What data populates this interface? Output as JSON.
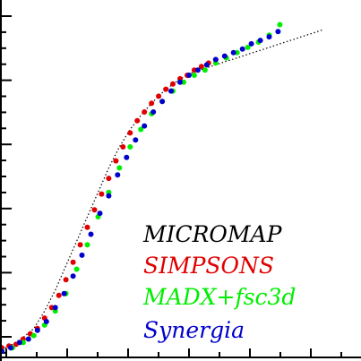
{
  "chart_data": {
    "type": "scatter",
    "title": "",
    "xlabel": "",
    "ylabel": "",
    "xlim": [
      0,
      100
    ],
    "ylim": [
      0,
      100
    ],
    "grid": false,
    "legend_placement": "bottom-right",
    "colors": {
      "micromap": "#000000",
      "simpsons": "#e00000",
      "madx": "#00ee00",
      "synergia": "#0000cc"
    },
    "series": [
      {
        "name": "MICROMAP",
        "style": "dotted-line",
        "x": [
          0,
          3,
          6,
          9,
          12,
          15,
          18,
          21,
          24,
          27,
          30,
          33,
          36,
          39,
          42,
          45,
          48,
          51,
          54,
          57,
          60,
          63,
          66,
          69,
          72,
          75,
          78,
          81,
          84,
          87,
          90
        ],
        "y": [
          2,
          3.5,
          5.5,
          8,
          13,
          19,
          26,
          33,
          40,
          47,
          54,
          60,
          65,
          69,
          72.5,
          75.5,
          78,
          80,
          81.5,
          82.5,
          83.5,
          84.5,
          85.5,
          86.5,
          87.5,
          88.5,
          89.5,
          90.5,
          91.5,
          92.5,
          93.5
        ]
      },
      {
        "name": "SIMPSONS",
        "style": "dots",
        "x": [
          0,
          2,
          4,
          6,
          8,
          10,
          12,
          14,
          16,
          18,
          20,
          22,
          24,
          26,
          28,
          30,
          32,
          34,
          36,
          38,
          40,
          42,
          44,
          46,
          48,
          50,
          52,
          54,
          56,
          58,
          60
        ],
        "y": [
          2.5,
          3,
          3.5,
          5,
          6.5,
          8,
          11,
          14,
          17.5,
          22,
          27,
          32,
          37,
          42,
          46.5,
          51,
          56,
          60,
          64,
          67.5,
          70,
          72.5,
          74.5,
          76.5,
          78,
          79.5,
          80.5,
          82,
          83,
          84,
          85
        ]
      },
      {
        "name": "MADX+fsc3d",
        "style": "dots",
        "x": [
          0,
          3,
          6,
          9,
          12,
          15,
          18,
          21,
          24,
          27,
          30,
          33,
          36,
          39,
          42,
          45,
          48,
          51,
          54,
          57,
          60,
          63,
          66,
          69,
          72,
          75,
          78
        ],
        "y": [
          1.5,
          2.5,
          4,
          6,
          9,
          13,
          18,
          25,
          32,
          40,
          47,
          54,
          60,
          65,
          69.5,
          73,
          76,
          78.5,
          80.5,
          82,
          84,
          85.5,
          87,
          88.5,
          90,
          92,
          95
        ]
      },
      {
        "name": "Synergia",
        "style": "dots",
        "x": [
          0,
          2.5,
          5,
          7.5,
          10,
          12.5,
          15,
          17.5,
          20,
          22.5,
          25,
          27.5,
          30,
          32.5,
          35,
          37.5,
          40,
          42.5,
          45,
          47.5,
          50,
          52.5,
          55,
          57.5,
          60,
          62.5,
          65,
          67.5,
          70,
          72.5,
          75,
          77.5
        ],
        "y": [
          1.5,
          2.5,
          4,
          5,
          7.5,
          10,
          14,
          18,
          23,
          29,
          35,
          41,
          46,
          52,
          57,
          62,
          66,
          70,
          73,
          76,
          78.5,
          80.5,
          82,
          83.5,
          85,
          86,
          87,
          88,
          89.5,
          90.5,
          91.5,
          93
        ]
      }
    ]
  }
}
